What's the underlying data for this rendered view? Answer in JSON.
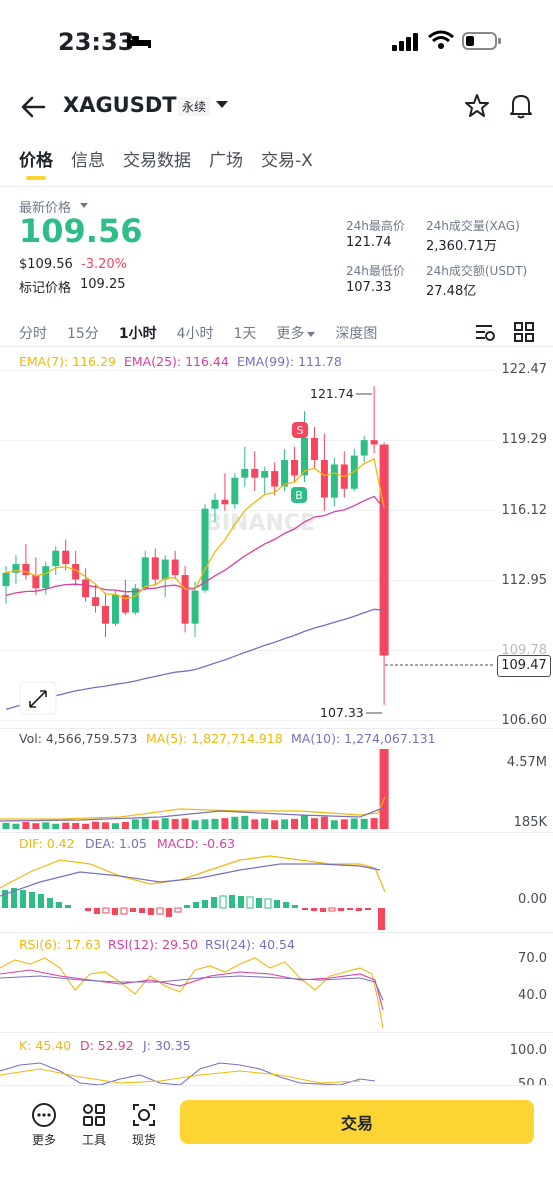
{
  "status": {
    "time": "23:33"
  },
  "header": {
    "symbol": "XAGUSDT",
    "badge": "永续"
  },
  "tabs": [
    "价格",
    "信息",
    "交易数据",
    "广场",
    "交易-X"
  ],
  "price": {
    "label": "最新价格",
    "last": "109.56",
    "usd": "$109.56",
    "change": "-3.20%",
    "mark_label": "标记价格",
    "mark_value": "109.25"
  },
  "stats": {
    "high_label": "24h最高价",
    "high": "121.74",
    "vol_label": "24h成交量(XAG)",
    "vol": "2,360.71万",
    "low_label": "24h最低价",
    "low": "107.33",
    "amt_label": "24h成交额(USDT)",
    "amt": "27.48亿"
  },
  "intervals": [
    "分时",
    "15分",
    "1小时",
    "4小时",
    "1天",
    "更多",
    "深度图"
  ],
  "ema": {
    "ema7": "EMA(7): 116.29",
    "ema25": "EMA(25): 116.44",
    "ema99": "EMA(99): 111.78"
  },
  "price_axis": [
    "122.47",
    "119.29",
    "116.12",
    "112.95",
    "109.78",
    "106.60"
  ],
  "current_price_tag": "109.47",
  "annot_high": "121.74",
  "annot_low": "107.33",
  "markers": {
    "sell": "S",
    "buy": "B"
  },
  "watermark": "BINANCE",
  "vol_line": {
    "vol": "Vol: 4,566,759.573",
    "ma5": "MA(5): 1,827,714.918",
    "ma10": "MA(10): 1,274,067.131"
  },
  "vol_axis": [
    "4.57M",
    "185K"
  ],
  "macd": {
    "dif": "DIF: 0.42",
    "dea": "DEA: 1.05",
    "macd": "MACD: -0.63",
    "axis": "0.00"
  },
  "rsi": {
    "r6": "RSI(6): 17.63",
    "r12": "RSI(12): 29.50",
    "r24": "RSI(24): 40.54",
    "axis": [
      "70.0",
      "40.0"
    ]
  },
  "kdj": {
    "k": "K: 45.40",
    "d": "D: 52.92",
    "j": "J: 30.35",
    "axis": [
      "100.0",
      "50.0"
    ]
  },
  "bottom": {
    "more": "更多",
    "tools": "工具",
    "spot": "现货",
    "trade": "交易"
  },
  "colors": {
    "up": "#2ebd85",
    "down": "#f6465d",
    "ema7": "#f0b90b",
    "ema25": "#d6409f",
    "ema99": "#7a6fbf",
    "accent": "#fcd535"
  },
  "chart_data": {
    "type": "candlestick",
    "interval": "1小时",
    "ylim": [
      106.6,
      122.47
    ],
    "candles": [
      [
        112.7,
        113.6,
        111.9,
        113.3
      ],
      [
        113.3,
        114.1,
        112.8,
        113.7
      ],
      [
        113.7,
        114.6,
        113.0,
        113.2
      ],
      [
        113.2,
        114.0,
        112.3,
        112.6
      ],
      [
        112.6,
        113.8,
        112.3,
        113.6
      ],
      [
        113.6,
        114.5,
        113.2,
        114.3
      ],
      [
        114.3,
        114.8,
        113.4,
        113.7
      ],
      [
        113.7,
        114.3,
        112.7,
        113.0
      ],
      [
        113.0,
        113.5,
        112.0,
        112.2
      ],
      [
        112.2,
        112.8,
        111.5,
        111.8
      ],
      [
        111.8,
        112.4,
        110.4,
        111.0
      ],
      [
        111.0,
        112.5,
        110.9,
        112.3
      ],
      [
        112.3,
        113.0,
        111.4,
        111.5
      ],
      [
        111.5,
        112.8,
        111.4,
        112.6
      ],
      [
        112.6,
        114.3,
        112.5,
        114.0
      ],
      [
        114.0,
        114.4,
        112.7,
        113.0
      ],
      [
        113.0,
        114.1,
        112.2,
        113.9
      ],
      [
        113.9,
        114.3,
        113.0,
        113.2
      ],
      [
        113.2,
        113.6,
        110.6,
        111.0
      ],
      [
        111.0,
        112.9,
        110.4,
        112.5
      ],
      [
        112.5,
        116.4,
        112.4,
        116.2
      ],
      [
        116.2,
        116.9,
        115.6,
        116.6
      ],
      [
        116.6,
        117.8,
        116.1,
        116.4
      ],
      [
        116.4,
        117.8,
        116.2,
        117.6
      ],
      [
        117.6,
        119.0,
        117.2,
        118.0
      ],
      [
        118.0,
        118.8,
        117.0,
        117.6
      ],
      [
        117.6,
        118.1,
        116.8,
        117.9
      ],
      [
        117.9,
        118.3,
        116.8,
        117.2
      ],
      [
        117.2,
        118.9,
        117.0,
        118.4
      ],
      [
        118.4,
        119.0,
        117.4,
        117.7
      ],
      [
        117.7,
        120.6,
        117.4,
        119.4
      ],
      [
        119.4,
        119.9,
        118.0,
        118.4
      ],
      [
        118.4,
        119.6,
        116.1,
        116.7
      ],
      [
        116.7,
        118.5,
        116.3,
        118.2
      ],
      [
        118.2,
        118.8,
        116.7,
        117.1
      ],
      [
        117.1,
        118.9,
        117.0,
        118.6
      ],
      [
        118.6,
        119.5,
        118.3,
        119.3
      ],
      [
        119.3,
        121.74,
        118.7,
        119.1
      ],
      [
        119.1,
        119.2,
        107.33,
        109.56
      ]
    ],
    "ema7_last": 116.29,
    "ema25_last": 116.44,
    "ema99_last": 111.78,
    "volume": [
      0.35,
      0.3,
      0.4,
      0.33,
      0.38,
      0.3,
      0.36,
      0.34,
      0.3,
      0.42,
      0.38,
      0.33,
      0.4,
      0.55,
      0.6,
      0.5,
      0.62,
      0.57,
      0.6,
      0.5,
      0.55,
      0.58,
      0.62,
      0.7,
      0.75,
      0.55,
      0.6,
      0.5,
      0.55,
      0.58,
      0.8,
      0.62,
      0.7,
      0.5,
      0.55,
      0.6,
      0.58,
      0.62,
      4.57
    ]
  }
}
